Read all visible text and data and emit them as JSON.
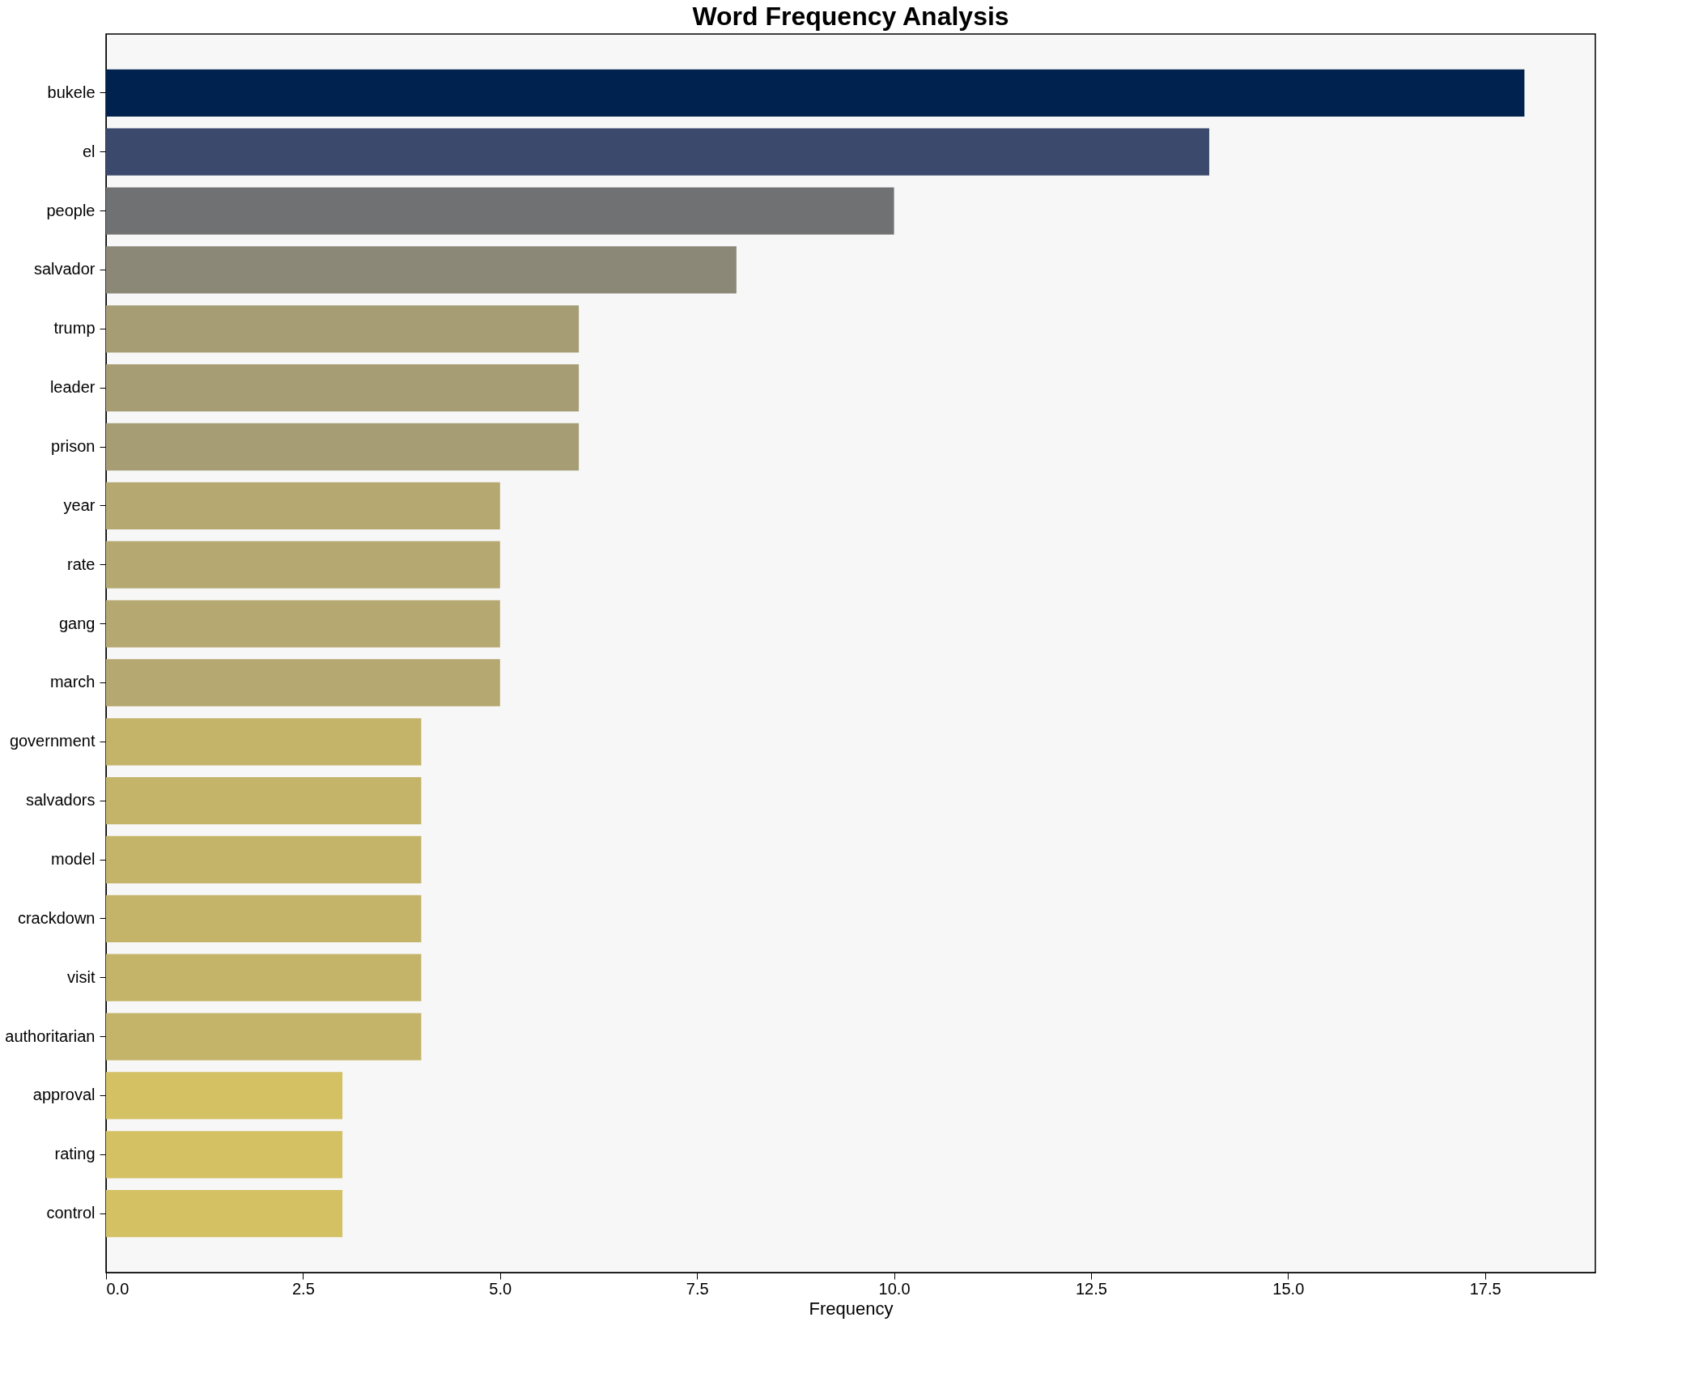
{
  "chart_data": {
    "type": "bar",
    "orientation": "horizontal",
    "title": "Word Frequency Analysis",
    "xlabel": "Frequency",
    "categories": [
      "bukele",
      "el",
      "people",
      "salvador",
      "trump",
      "leader",
      "prison",
      "year",
      "rate",
      "gang",
      "march",
      "government",
      "salvadors",
      "model",
      "crackdown",
      "visit",
      "authoritarian",
      "approval",
      "rating",
      "control"
    ],
    "values": [
      18,
      14,
      10,
      8,
      6,
      6,
      6,
      5,
      5,
      5,
      5,
      4,
      4,
      4,
      4,
      4,
      4,
      3,
      3,
      3
    ],
    "colors": [
      "#00224e",
      "#3b496c",
      "#707173",
      "#8b8878",
      "#a69d75",
      "#a69d75",
      "#a69d75",
      "#b5a871",
      "#b5a871",
      "#b5a871",
      "#b5a871",
      "#c4b46a",
      "#c4b46a",
      "#c4b46a",
      "#c4b46a",
      "#c4b46a",
      "#c4b46a",
      "#d3c164",
      "#d3c164",
      "#d3c164"
    ],
    "xlim": [
      0,
      18.9
    ],
    "xticks": [
      {
        "value": 0,
        "label": "0.0"
      },
      {
        "value": 2.5,
        "label": "2.5"
      },
      {
        "value": 5,
        "label": "5.0"
      },
      {
        "value": 7.5,
        "label": "7.5"
      },
      {
        "value": 10,
        "label": "10.0"
      },
      {
        "value": 12.5,
        "label": "12.5"
      },
      {
        "value": 15,
        "label": "15.0"
      },
      {
        "value": 17.5,
        "label": "17.5"
      }
    ],
    "grid": false,
    "legend": false
  }
}
